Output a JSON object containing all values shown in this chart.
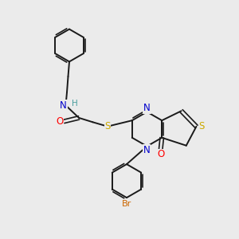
{
  "bg_color": "#ebebeb",
  "atom_colors": {
    "C": "#000000",
    "N": "#0000cc",
    "O": "#ff0000",
    "S": "#ccaa00",
    "Br": "#cc6600",
    "H": "#4a9e9e"
  },
  "bond_color": "#1a1a1a",
  "figsize": [
    3.0,
    3.0
  ],
  "dpi": 100
}
